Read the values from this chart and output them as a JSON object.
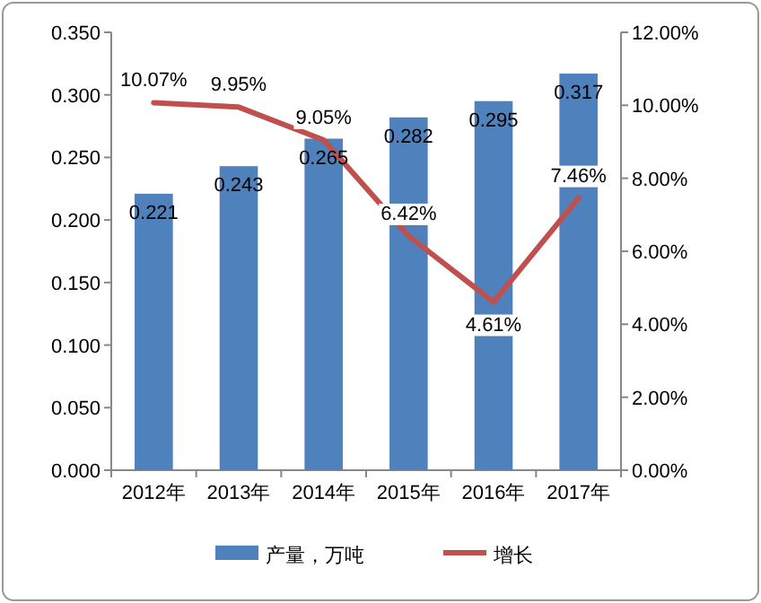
{
  "chart_data": {
    "type": "bar",
    "categories": [
      "2012年",
      "2013年",
      "2014年",
      "2015年",
      "2016年",
      "2017年"
    ],
    "series": [
      {
        "name": "产量，万吨",
        "color": "#4f81bd",
        "values": [
          0.221,
          0.243,
          0.265,
          0.282,
          0.295,
          0.317
        ],
        "value_labels": [
          "0.221",
          "0.243",
          "0.265",
          "0.282",
          "0.295",
          "0.317"
        ]
      },
      {
        "name": "增长",
        "type": "line",
        "axis": "y2",
        "color": "#c0504d",
        "marker": "none",
        "values": [
          10.07,
          9.95,
          9.05,
          6.42,
          4.61,
          7.46
        ],
        "value_labels": [
          "10.07%",
          "9.95%",
          "9.05%",
          "6.42%",
          "4.61%",
          "7.46%"
        ]
      }
    ],
    "ylim": [
      0,
      0.35
    ],
    "yticks": [
      {
        "value": 0,
        "label": "0.000"
      },
      {
        "value": 0.05,
        "label": "0.050"
      },
      {
        "value": 0.1,
        "label": "0.100"
      },
      {
        "value": 0.15,
        "label": "0.150"
      },
      {
        "value": 0.2,
        "label": "0.200"
      },
      {
        "value": 0.25,
        "label": "0.250"
      },
      {
        "value": 0.3,
        "label": "0.300"
      },
      {
        "value": 0.35,
        "label": "0.350"
      }
    ],
    "y2lim": [
      0,
      12
    ],
    "y2ticks": [
      {
        "value": 0,
        "label": "0.00%"
      },
      {
        "value": 2,
        "label": "2.00%"
      },
      {
        "value": 4,
        "label": "4.00%"
      },
      {
        "value": 6,
        "label": "6.00%"
      },
      {
        "value": 8,
        "label": "8.00%"
      },
      {
        "value": 10,
        "label": "10.00%"
      },
      {
        "value": 12,
        "label": "12.00%"
      }
    ],
    "grid": false,
    "legend": "bottom"
  }
}
